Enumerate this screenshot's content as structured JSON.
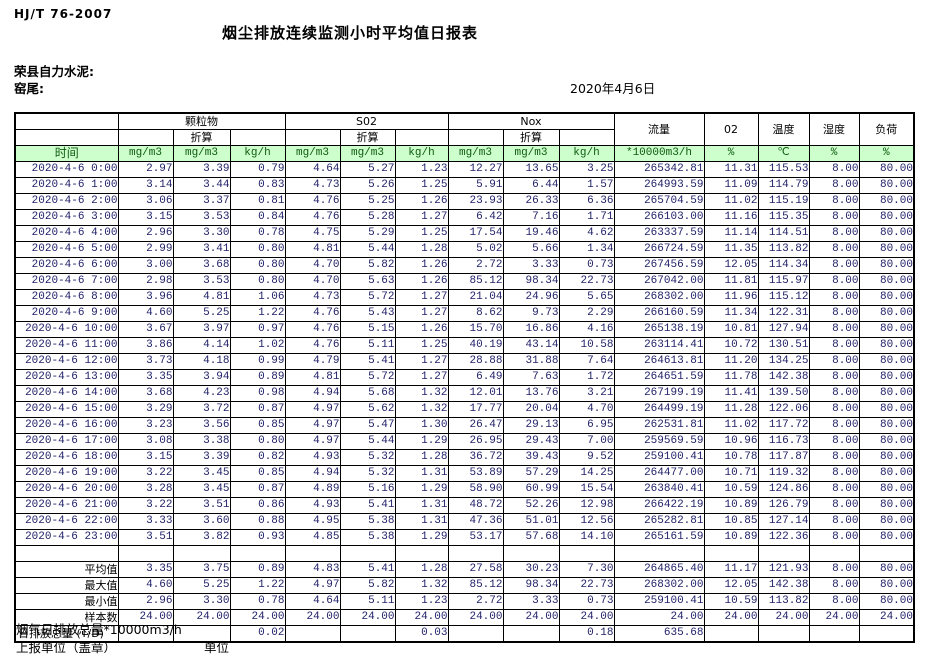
{
  "meta": {
    "standard": "HJ/T  76-2007",
    "title": "烟尘排放连续监测小时平均值日报表",
    "company": "荣县自力水泥:",
    "site": "窑尾:",
    "date": "2020年4月6日"
  },
  "table": {
    "time_header": "时间",
    "converted_label": "折算",
    "groups": {
      "pm": "颗粒物",
      "so2": "S02",
      "nox": "Nox"
    },
    "single_headers": {
      "flow": "流量",
      "o2": "02",
      "temp": "温度",
      "humidity": "湿度",
      "load": "负荷"
    },
    "units": [
      "mg/m3",
      "mg/m3",
      "kg/h",
      "mg/m3",
      "mg/m3",
      "kg/h",
      "mg/m3",
      "mg/m3",
      "kg/h",
      "*10000m3/h",
      "%",
      "℃",
      "%",
      "%"
    ],
    "rows": [
      {
        "time": "2020-4-6  0:00",
        "values": [
          "2.97",
          "3.39",
          "0.79",
          "4.64",
          "5.27",
          "1.23",
          "12.27",
          "13.65",
          "3.25",
          "265342.81",
          "11.31",
          "115.53",
          "8.00",
          "80.00"
        ]
      },
      {
        "time": "2020-4-6  1:00",
        "values": [
          "3.14",
          "3.44",
          "0.83",
          "4.73",
          "5.26",
          "1.25",
          "5.91",
          "6.44",
          "1.57",
          "264993.59",
          "11.09",
          "114.79",
          "8.00",
          "80.00"
        ]
      },
      {
        "time": "2020-4-6  2:00",
        "values": [
          "3.06",
          "3.37",
          "0.81",
          "4.76",
          "5.25",
          "1.26",
          "23.93",
          "26.33",
          "6.36",
          "265704.59",
          "11.02",
          "115.19",
          "8.00",
          "80.00"
        ]
      },
      {
        "time": "2020-4-6  3:00",
        "values": [
          "3.15",
          "3.53",
          "0.84",
          "4.76",
          "5.28",
          "1.27",
          "6.42",
          "7.16",
          "1.71",
          "266103.00",
          "11.16",
          "115.35",
          "8.00",
          "80.00"
        ]
      },
      {
        "time": "2020-4-6  4:00",
        "values": [
          "2.96",
          "3.30",
          "0.78",
          "4.75",
          "5.29",
          "1.25",
          "17.54",
          "19.46",
          "4.62",
          "263337.59",
          "11.14",
          "114.51",
          "8.00",
          "80.00"
        ]
      },
      {
        "time": "2020-4-6  5:00",
        "values": [
          "2.99",
          "3.41",
          "0.80",
          "4.81",
          "5.44",
          "1.28",
          "5.02",
          "5.66",
          "1.34",
          "266724.59",
          "11.35",
          "113.82",
          "8.00",
          "80.00"
        ]
      },
      {
        "time": "2020-4-6  6:00",
        "values": [
          "3.00",
          "3.68",
          "0.80",
          "4.70",
          "5.82",
          "1.26",
          "2.72",
          "3.33",
          "0.73",
          "267456.59",
          "12.05",
          "114.34",
          "8.00",
          "80.00"
        ]
      },
      {
        "time": "2020-4-6  7:00",
        "values": [
          "2.98",
          "3.53",
          "0.80",
          "4.70",
          "5.63",
          "1.26",
          "85.12",
          "98.34",
          "22.73",
          "267042.00",
          "11.81",
          "115.97",
          "8.00",
          "80.00"
        ]
      },
      {
        "time": "2020-4-6  8:00",
        "values": [
          "3.96",
          "4.81",
          "1.06",
          "4.73",
          "5.72",
          "1.27",
          "21.04",
          "24.96",
          "5.65",
          "268302.00",
          "11.96",
          "115.12",
          "8.00",
          "80.00"
        ]
      },
      {
        "time": "2020-4-6  9:00",
        "values": [
          "4.60",
          "5.25",
          "1.22",
          "4.76",
          "5.43",
          "1.27",
          "8.62",
          "9.73",
          "2.29",
          "266160.59",
          "11.34",
          "122.31",
          "8.00",
          "80.00"
        ]
      },
      {
        "time": "2020-4-6 10:00",
        "values": [
          "3.67",
          "3.97",
          "0.97",
          "4.76",
          "5.15",
          "1.26",
          "15.70",
          "16.86",
          "4.16",
          "265138.19",
          "10.81",
          "127.94",
          "8.00",
          "80.00"
        ]
      },
      {
        "time": "2020-4-6 11:00",
        "values": [
          "3.86",
          "4.14",
          "1.02",
          "4.76",
          "5.11",
          "1.25",
          "40.19",
          "43.14",
          "10.58",
          "263114.41",
          "10.72",
          "130.51",
          "8.00",
          "80.00"
        ]
      },
      {
        "time": "2020-4-6 12:00",
        "values": [
          "3.73",
          "4.18",
          "0.99",
          "4.79",
          "5.41",
          "1.27",
          "28.88",
          "31.88",
          "7.64",
          "264613.81",
          "11.20",
          "134.25",
          "8.00",
          "80.00"
        ]
      },
      {
        "time": "2020-4-6 13:00",
        "values": [
          "3.35",
          "3.94",
          "0.89",
          "4.81",
          "5.72",
          "1.27",
          "6.49",
          "7.63",
          "1.72",
          "264651.59",
          "11.78",
          "142.38",
          "8.00",
          "80.00"
        ]
      },
      {
        "time": "2020-4-6 14:00",
        "values": [
          "3.68",
          "4.23",
          "0.98",
          "4.94",
          "5.68",
          "1.32",
          "12.01",
          "13.76",
          "3.21",
          "267199.19",
          "11.41",
          "139.50",
          "8.00",
          "80.00"
        ]
      },
      {
        "time": "2020-4-6 15:00",
        "values": [
          "3.29",
          "3.72",
          "0.87",
          "4.97",
          "5.62",
          "1.32",
          "17.77",
          "20.04",
          "4.70",
          "264499.19",
          "11.28",
          "122.06",
          "8.00",
          "80.00"
        ]
      },
      {
        "time": "2020-4-6 16:00",
        "values": [
          "3.23",
          "3.56",
          "0.85",
          "4.97",
          "5.47",
          "1.30",
          "26.47",
          "29.13",
          "6.95",
          "262531.81",
          "11.02",
          "117.72",
          "8.00",
          "80.00"
        ]
      },
      {
        "time": "2020-4-6 17:00",
        "values": [
          "3.08",
          "3.38",
          "0.80",
          "4.97",
          "5.44",
          "1.29",
          "26.95",
          "29.43",
          "7.00",
          "259569.59",
          "10.96",
          "116.73",
          "8.00",
          "80.00"
        ]
      },
      {
        "time": "2020-4-6 18:00",
        "values": [
          "3.15",
          "3.39",
          "0.82",
          "4.93",
          "5.32",
          "1.28",
          "36.72",
          "39.43",
          "9.52",
          "259100.41",
          "10.78",
          "117.87",
          "8.00",
          "80.00"
        ]
      },
      {
        "time": "2020-4-6 19:00",
        "values": [
          "3.22",
          "3.45",
          "0.85",
          "4.94",
          "5.32",
          "1.31",
          "53.89",
          "57.29",
          "14.25",
          "264477.00",
          "10.71",
          "119.32",
          "8.00",
          "80.00"
        ]
      },
      {
        "time": "2020-4-6 20:00",
        "values": [
          "3.28",
          "3.45",
          "0.87",
          "4.89",
          "5.16",
          "1.29",
          "58.90",
          "60.99",
          "15.54",
          "263840.41",
          "10.59",
          "124.86",
          "8.00",
          "80.00"
        ]
      },
      {
        "time": "2020-4-6 21:00",
        "values": [
          "3.22",
          "3.51",
          "0.86",
          "4.93",
          "5.41",
          "1.31",
          "48.72",
          "52.26",
          "12.98",
          "266422.19",
          "10.89",
          "126.79",
          "8.00",
          "80.00"
        ]
      },
      {
        "time": "2020-4-6 22:00",
        "values": [
          "3.33",
          "3.60",
          "0.88",
          "4.95",
          "5.38",
          "1.31",
          "47.36",
          "51.01",
          "12.56",
          "265282.81",
          "10.85",
          "127.14",
          "8.00",
          "80.00"
        ]
      },
      {
        "time": "2020-4-6 23:00",
        "values": [
          "3.51",
          "3.82",
          "0.93",
          "4.85",
          "5.38",
          "1.29",
          "53.17",
          "57.68",
          "14.10",
          "265161.59",
          "10.89",
          "122.36",
          "8.00",
          "80.00"
        ]
      }
    ],
    "summary": [
      {
        "label": "平均值",
        "values": [
          "3.35",
          "3.75",
          "0.89",
          "4.83",
          "5.41",
          "1.28",
          "27.58",
          "30.23",
          "7.30",
          "264865.40",
          "11.17",
          "121.93",
          "8.00",
          "80.00"
        ]
      },
      {
        "label": "最大值",
        "values": [
          "4.60",
          "5.25",
          "1.22",
          "4.97",
          "5.82",
          "1.32",
          "85.12",
          "98.34",
          "22.73",
          "268302.00",
          "12.05",
          "142.38",
          "8.00",
          "80.00"
        ]
      },
      {
        "label": "最小值",
        "values": [
          "2.96",
          "3.30",
          "0.78",
          "4.64",
          "5.11",
          "1.23",
          "2.72",
          "3.33",
          "0.73",
          "259100.41",
          "10.59",
          "113.82",
          "8.00",
          "80.00"
        ]
      },
      {
        "label": "样本数",
        "values": [
          "24.00",
          "24.00",
          "24.00",
          "24.00",
          "24.00",
          "24.00",
          "24.00",
          "24.00",
          "24.00",
          "24.00",
          "24.00",
          "24.00",
          "24.00",
          "24.00"
        ]
      },
      {
        "label": "日排放总量 (T/D)",
        "values": [
          "",
          "",
          "0.02",
          "",
          "",
          "0.03",
          "",
          "",
          "0.18",
          "635.68",
          "",
          "",
          "",
          ""
        ]
      }
    ]
  },
  "footer": {
    "line1": "烟气日排放总量*10000m3/h",
    "report_unit_label": "上报单位（盖章）",
    "unit_label": "单位"
  },
  "colors": {
    "unit_row_bg": "#ccffcc",
    "unit_row_text": "#0f5a0f",
    "data_text": "#22226a",
    "border": "#000000"
  }
}
